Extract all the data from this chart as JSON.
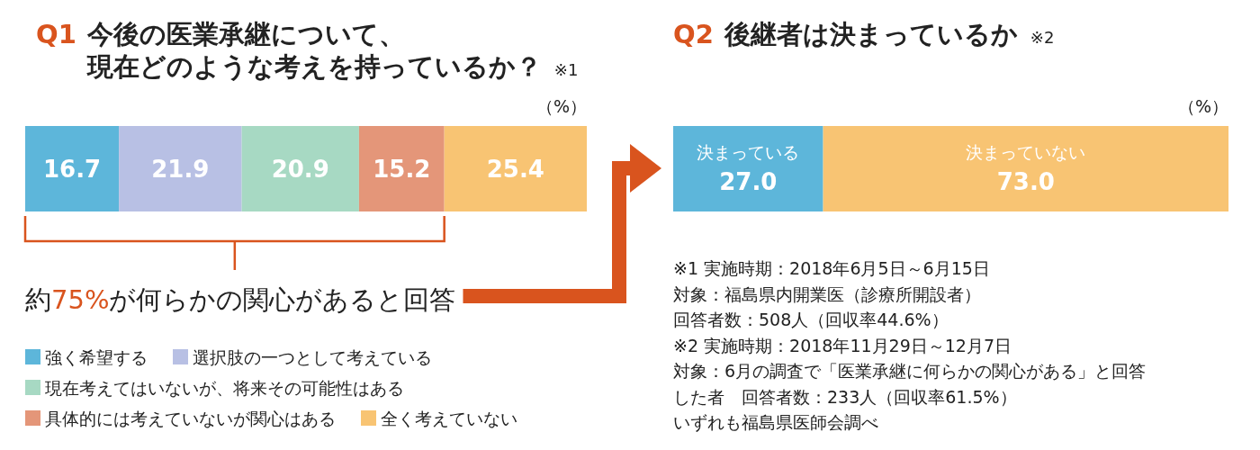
{
  "chart_data": [
    {
      "type": "bar",
      "orientation": "horizontal",
      "stacked": true,
      "data_labels": true,
      "legend": "bottom",
      "title": "Q1 今後の医業承継について、現在どのような考えを持っているか？ ※1",
      "categories": [
        null
      ],
      "series": [
        {
          "name": "強く希望する",
          "color": "#5db6da",
          "values": [
            16.7
          ]
        },
        {
          "name": "選択肢の一つとして考えている",
          "color": "#b8c0e4",
          "values": [
            21.9
          ]
        },
        {
          "name": "現在考えてはいないが、将来その可能性はある",
          "color": "#a7d9c3",
          "values": [
            20.9
          ]
        },
        {
          "name": "具体的には考えていないが関心はある",
          "color": "#e49679",
          "values": [
            15.2
          ]
        },
        {
          "name": "全く考えていない",
          "color": "#f8c473",
          "values": [
            25.4
          ]
        }
      ],
      "annotations": [
        "（%）",
        "約75%が何らかの関心があると回答"
      ]
    },
    {
      "type": "bar",
      "orientation": "horizontal",
      "stacked": true,
      "legend": false,
      "title": "Q2 後継者は決まっているか ※2",
      "categories": [
        null
      ],
      "series": [
        {
          "name": "決まっている",
          "color": "#5db6da",
          "values": [
            27.0
          ],
          "value_labels": [
            "27.0"
          ]
        },
        {
          "name": "決まっていない",
          "color": "#f8c473",
          "values": [
            73.0
          ],
          "value_labels": [
            "73.0"
          ]
        }
      ],
      "annotations": [
        "（%）",
        "※1 実施時期：2018年6月5日～6月15日",
        "対象：福島県内開業医（診療所開設者）",
        "回答者数：508人（回収率44.6%）",
        "※2 実施時期：2018年11月29日～12月7日",
        "対象：6月の調査で「医業承継に何らかの関心がある」と回答",
        "した者　回答者数：233人（回収率61.5%）",
        "いずれも福島県医師会調べ"
      ]
    }
  ]
}
